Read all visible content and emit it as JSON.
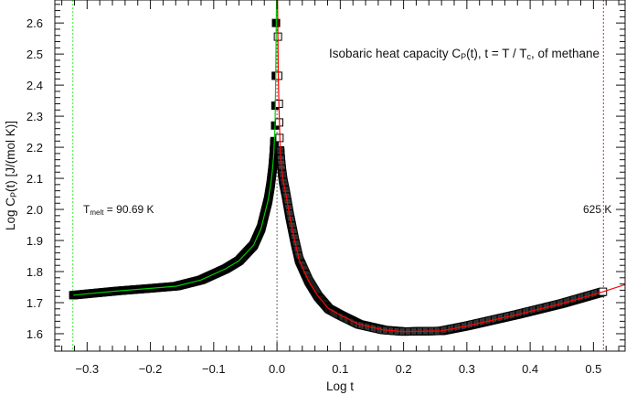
{
  "chart_data": {
    "type": "scatter",
    "title": "Isobaric heat capacity C",
    "title_sub": "P",
    "title_rest": "(t), t = T / T",
    "title_sub2": "c",
    "title_end": ", of methane",
    "xlabel": "Log t",
    "ylabel_main": "Log C",
    "ylabel_sub": "P",
    "ylabel_rest": "(t) [J/(mol K)]",
    "xlim": [
      -0.351,
      0.55
    ],
    "ylim": [
      1.544,
      2.674
    ],
    "xticks": [
      -0.3,
      -0.2,
      -0.1,
      0.0,
      0.1,
      0.2,
      0.3,
      0.4,
      0.5
    ],
    "xtick_labels": [
      "−0.3",
      "−0.2",
      "−0.1",
      "0.0",
      "0.1",
      "0.2",
      "0.3",
      "0.4",
      "0.5"
    ],
    "yticks": [
      1.6,
      1.7,
      1.8,
      1.9,
      2.0,
      2.1,
      2.2,
      2.3,
      2.4,
      2.5,
      2.6
    ],
    "ytick_labels": [
      "1.6",
      "1.7",
      "1.8",
      "1.9",
      "2.0",
      "2.1",
      "2.2",
      "2.3",
      "2.4",
      "2.5",
      "2.6"
    ],
    "grid": false,
    "annotations": {
      "melt_label": "T",
      "melt_sub": "melt",
      "melt_value": " = 90.69 K",
      "melt_x": -0.3225,
      "high_label": "625 K",
      "high_x": 0.5158,
      "critical_x": 0.0
    },
    "colors": {
      "liquid_fit": "#00cc00",
      "gas_fit": "#ff0000",
      "melt_line": "#33ee33",
      "markers": "#000000"
    },
    "series": [
      {
        "marker": "filled-square",
        "x": [
          -0.322,
          -0.25,
          -0.2,
          -0.159,
          -0.12,
          -0.081,
          -0.06,
          -0.037,
          -0.025,
          -0.014,
          -0.01,
          -0.007,
          -0.005,
          -0.004,
          -0.003,
          -0.0025,
          -0.002,
          -0.0015
        ],
        "y": [
          1.724,
          1.738,
          1.746,
          1.753,
          1.773,
          1.809,
          1.835,
          1.885,
          1.94,
          2.03,
          2.08,
          2.13,
          2.18,
          2.22,
          2.27,
          2.334,
          2.43,
          2.6
        ]
      },
      {
        "marker": "open-square",
        "x": [
          0.0015,
          0.002,
          0.003,
          0.0035,
          0.004,
          0.005,
          0.006,
          0.008,
          0.01,
          0.014,
          0.02,
          0.028,
          0.035,
          0.05,
          0.065,
          0.082,
          0.1,
          0.13,
          0.169,
          0.2,
          0.26,
          0.3,
          0.38,
          0.45,
          0.515
        ],
        "y": [
          2.556,
          2.43,
          2.34,
          2.28,
          2.23,
          2.19,
          2.16,
          2.12,
          2.09,
          2.05,
          1.98,
          1.9,
          1.838,
          1.77,
          1.72,
          1.68,
          1.66,
          1.63,
          1.612,
          1.607,
          1.609,
          1.625,
          1.662,
          1.697,
          1.735
        ]
      }
    ],
    "fits": [
      {
        "color": "#00cc00",
        "x": [
          -0.322,
          -0.25,
          -0.2,
          -0.159,
          -0.12,
          -0.081,
          -0.06,
          -0.037,
          -0.025,
          -0.014,
          -0.01,
          -0.007,
          -0.005,
          -0.003,
          -0.002,
          -0.0012,
          -0.0005
        ],
        "y": [
          1.724,
          1.738,
          1.746,
          1.753,
          1.773,
          1.809,
          1.835,
          1.885,
          1.94,
          2.03,
          2.08,
          2.13,
          2.18,
          2.27,
          2.43,
          2.6,
          2.7
        ]
      },
      {
        "color": "#ff0000",
        "x": [
          0.0008,
          0.0015,
          0.002,
          0.003,
          0.005,
          0.008,
          0.01,
          0.014,
          0.02,
          0.028,
          0.035,
          0.05,
          0.065,
          0.082,
          0.1,
          0.13,
          0.169,
          0.2,
          0.26,
          0.3,
          0.38,
          0.45,
          0.515,
          0.55
        ],
        "y": [
          2.7,
          2.556,
          2.43,
          2.34,
          2.19,
          2.12,
          2.09,
          2.05,
          1.98,
          1.9,
          1.838,
          1.77,
          1.72,
          1.68,
          1.66,
          1.63,
          1.612,
          1.607,
          1.609,
          1.625,
          1.662,
          1.697,
          1.735,
          1.758
        ]
      }
    ]
  }
}
